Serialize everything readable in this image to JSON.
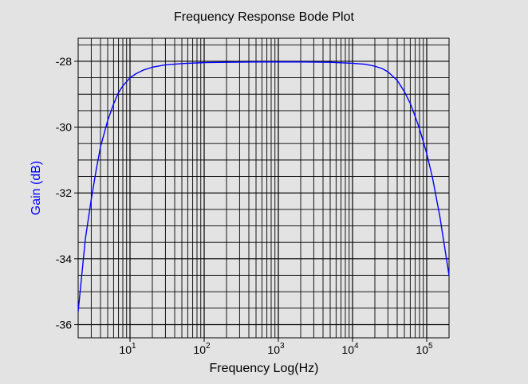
{
  "chart_data": {
    "type": "line",
    "title": "Frequency Response Bode Plot",
    "xlabel": "Frequency Log(Hz)",
    "ylabel": "Gain (dB)",
    "x_scale": "log",
    "xlim": [
      2,
      200000
    ],
    "ylim": [
      -36.4,
      -27.3
    ],
    "x_ticks": [
      {
        "value": 10,
        "base": "10",
        "exp": "1"
      },
      {
        "value": 100,
        "base": "10",
        "exp": "2"
      },
      {
        "value": 1000,
        "base": "10",
        "exp": "3"
      },
      {
        "value": 10000,
        "base": "10",
        "exp": "4"
      },
      {
        "value": 100000,
        "base": "10",
        "exp": "5"
      }
    ],
    "y_ticks": [
      {
        "value": -28,
        "label": "-28"
      },
      {
        "value": -30,
        "label": "-30"
      },
      {
        "value": -32,
        "label": "-32"
      },
      {
        "value": -34,
        "label": "-34"
      },
      {
        "value": -36,
        "label": "-36"
      }
    ],
    "grid": true,
    "colors": {
      "line": "#0000ff",
      "ylabel": "#0000ff",
      "background": "#e3e3e3",
      "plot": "#e3e3e3",
      "grid": "#000000"
    },
    "series": [
      {
        "x": [
          2,
          2.5,
          3,
          3.5,
          4,
          5,
          6,
          7,
          8,
          10,
          12,
          15,
          20,
          30,
          50,
          100,
          200,
          500,
          1000,
          2000,
          5000,
          10000,
          15000,
          20000,
          25000,
          30000,
          40000,
          50000,
          60000,
          70000,
          80000,
          100000,
          120000,
          150000,
          200000
        ],
        "y": [
          -35.6,
          -33.4,
          -32.2,
          -31.3,
          -30.6,
          -29.8,
          -29.3,
          -28.95,
          -28.75,
          -28.5,
          -28.38,
          -28.27,
          -28.18,
          -28.11,
          -28.07,
          -28.04,
          -28.03,
          -28.02,
          -28.02,
          -28.02,
          -28.03,
          -28.06,
          -28.09,
          -28.15,
          -28.22,
          -28.32,
          -28.58,
          -28.92,
          -29.28,
          -29.68,
          -30.05,
          -30.8,
          -31.55,
          -32.7,
          -34.5
        ]
      }
    ]
  }
}
